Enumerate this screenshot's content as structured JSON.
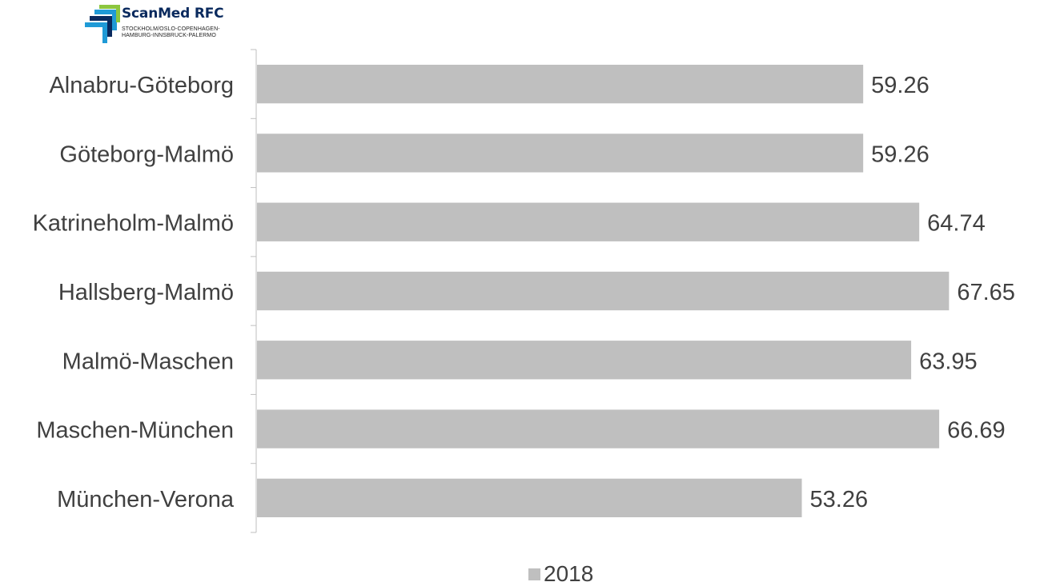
{
  "logo": {
    "title": "ScanMed RFC",
    "subtitle_line1": "STOCKHOLM/OSLO-COPENHAGEN-",
    "subtitle_line2": "HAMBURG-INNSBRUCK-PALERMO",
    "colors": [
      "#0a2a5e",
      "#1f9ad6",
      "#8cc63f"
    ]
  },
  "chart_data": {
    "type": "bar",
    "orientation": "horizontal",
    "categories": [
      "Alnabru-Göteborg",
      "Göteborg-Malmö",
      "Katrineholm-Malmö",
      "Hallsberg-Malmö",
      "Malmö-Maschen",
      "Maschen-München",
      "München-Verona"
    ],
    "series": [
      {
        "name": "2018",
        "values": [
          59.26,
          59.26,
          64.74,
          67.65,
          63.95,
          66.69,
          53.26
        ],
        "color": "#bfbfbf"
      }
    ],
    "data_labels": [
      "59.26",
      "59.26",
      "64.74",
      "67.65",
      "63.95",
      "66.69",
      "53.26"
    ],
    "xlim": [
      0,
      69.5
    ],
    "grid": false,
    "legend_position": "bottom"
  }
}
